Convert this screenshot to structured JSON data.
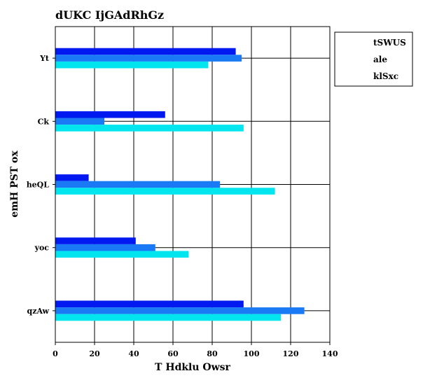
{
  "chart_data": {
    "type": "bar",
    "orientation": "horizontal",
    "title": "dUKC IjGAdRhGz",
    "xlabel": "T Hdklu Owsr",
    "ylabel": "emH PST ox",
    "categories": [
      "Yt",
      "Ck",
      "heQL",
      "yoc",
      "qzAw"
    ],
    "series": [
      {
        "name": "tSWUS",
        "color": "#0019f0",
        "values": [
          92,
          56,
          17,
          41,
          96
        ]
      },
      {
        "name": "ale",
        "color": "#1a7af5",
        "values": [
          95,
          25,
          84,
          51,
          127
        ]
      },
      {
        "name": "klSxc",
        "color": "#00e5ee",
        "values": [
          78,
          96,
          112,
          68,
          115
        ]
      }
    ],
    "xlim": [
      0,
      140
    ],
    "xticks": [
      0,
      20,
      40,
      60,
      80,
      100,
      120,
      140
    ],
    "grid": true,
    "legend_position": "outside-top-right"
  }
}
